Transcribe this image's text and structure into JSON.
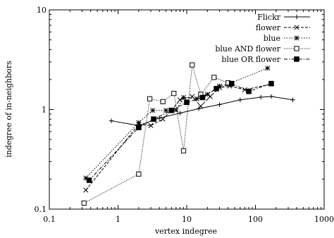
{
  "chart_data": {
    "type": "line",
    "title": "",
    "xlabel": "vertex indegree",
    "ylabel": "indegree of in-neighbors",
    "xscale": "log",
    "yscale": "log",
    "xlim": [
      0.1,
      1000
    ],
    "ylim": [
      0.1,
      10
    ],
    "x_ticks": [
      0.1,
      1,
      10,
      100,
      1000
    ],
    "x_tick_labels": [
      "0.1",
      "1",
      "10",
      "100",
      "1000"
    ],
    "y_ticks": [
      0.1,
      1,
      10
    ],
    "y_tick_labels": [
      "0.1",
      "1",
      "10"
    ],
    "grid": false,
    "legend_position": "top-right",
    "series": [
      {
        "name": "Flickr",
        "marker": "plus",
        "dash": "solid",
        "points": [
          [
            0.8,
            0.77
          ],
          [
            2,
            0.69
          ],
          [
            4,
            0.82
          ],
          [
            8,
            0.92
          ],
          [
            15,
            1.02
          ],
          [
            30,
            1.12
          ],
          [
            60,
            1.25
          ],
          [
            120,
            1.33
          ],
          [
            170,
            1.35
          ],
          [
            350,
            1.25
          ]
        ]
      },
      {
        "name": "flower",
        "marker": "x",
        "dash": "dashed",
        "points": [
          [
            0.34,
            0.155
          ],
          [
            2,
            0.71
          ],
          [
            3,
            0.69
          ],
          [
            4.5,
            0.8
          ],
          [
            6,
            0.98
          ],
          [
            8,
            1.25
          ],
          [
            12,
            1.35
          ],
          [
            16,
            1.08
          ],
          [
            22,
            1.35
          ],
          [
            30,
            1.65
          ],
          [
            42,
            1.72
          ],
          [
            70,
            1.58
          ],
          [
            170,
            1.8
          ]
        ]
      },
      {
        "name": "blue",
        "marker": "star",
        "dash": "dotted",
        "points": [
          [
            0.34,
            0.205
          ],
          [
            2,
            0.74
          ],
          [
            3.2,
            0.98
          ],
          [
            5,
            0.98
          ],
          [
            7,
            0.99
          ],
          [
            9,
            1.32
          ],
          [
            14,
            1.28
          ],
          [
            20,
            1.42
          ],
          [
            30,
            1.72
          ],
          [
            42,
            1.82
          ],
          [
            150,
            2.6
          ]
        ]
      },
      {
        "name": "blue AND flower",
        "marker": "open-square",
        "dash": "fine-dotted",
        "points": [
          [
            0.32,
            0.115
          ],
          [
            2,
            0.225
          ],
          [
            2.9,
            1.28
          ],
          [
            4.5,
            1.2
          ],
          [
            6.5,
            1.45
          ],
          [
            9,
            0.385
          ],
          [
            12,
            2.8
          ],
          [
            16,
            1.42
          ],
          [
            25,
            2.1
          ],
          [
            40,
            1.85
          ]
        ]
      },
      {
        "name": "blue OR flower",
        "marker": "filled-square",
        "dash": "dash-dot",
        "points": [
          [
            0.38,
            0.195
          ],
          [
            2,
            0.66
          ],
          [
            3.3,
            0.8
          ],
          [
            6,
            0.98
          ],
          [
            10,
            1.18
          ],
          [
            17,
            1.32
          ],
          [
            27,
            1.62
          ],
          [
            45,
            1.82
          ],
          [
            80,
            1.52
          ],
          [
            170,
            1.82
          ]
        ]
      }
    ]
  }
}
